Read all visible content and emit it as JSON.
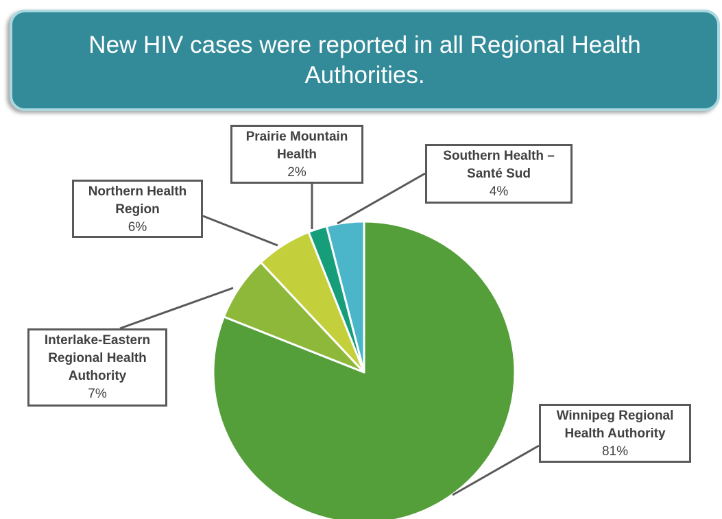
{
  "chart_data": {
    "type": "pie",
    "title": "New HIV cases were reported in all Regional Health Authorities.",
    "categories": [
      "Winnipeg Regional Health Authority",
      "Interlake-Eastern Regional Health Authority",
      "Northern Health Region",
      "Prairie Mountain Health",
      "Southern Health – Santé Sud"
    ],
    "values": [
      81,
      7,
      6,
      2,
      4
    ],
    "value_labels": [
      "81%",
      "7%",
      "6%",
      "2%",
      "4%"
    ],
    "colors": [
      "#559f3a",
      "#8db83a",
      "#c4cf3c",
      "#169e7b",
      "#4bb5c9"
    ]
  }
}
